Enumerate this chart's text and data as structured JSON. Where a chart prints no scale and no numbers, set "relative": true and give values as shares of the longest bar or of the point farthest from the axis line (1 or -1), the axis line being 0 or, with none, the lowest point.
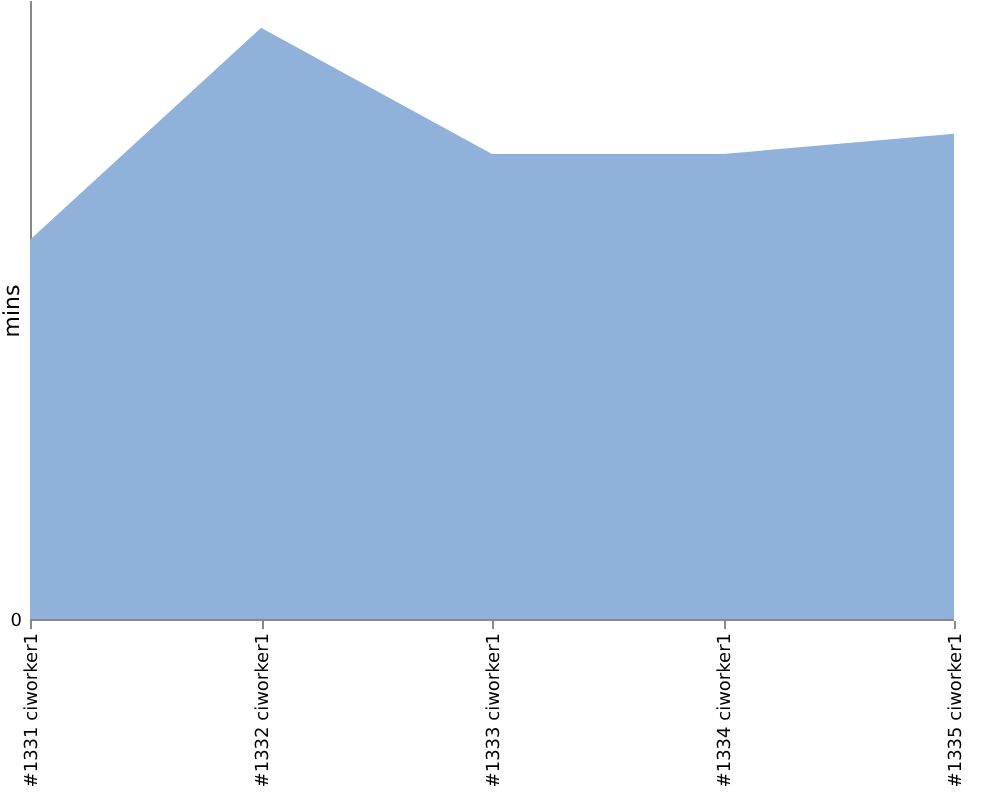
{
  "chart_data": {
    "type": "area",
    "relative": true,
    "ylabel": "mins",
    "categories": [
      "#1331 ciworker1",
      "#1332 ciworker1",
      "#1333 ciworker1",
      "#1334 ciworker1",
      "#1335 ciworker1"
    ],
    "series": [
      {
        "color": "#8fb1da",
        "values": [
          0.642,
          1,
          0.787,
          0.787,
          0.821
        ]
      }
    ],
    "annotations": [
      "0"
    ]
  }
}
